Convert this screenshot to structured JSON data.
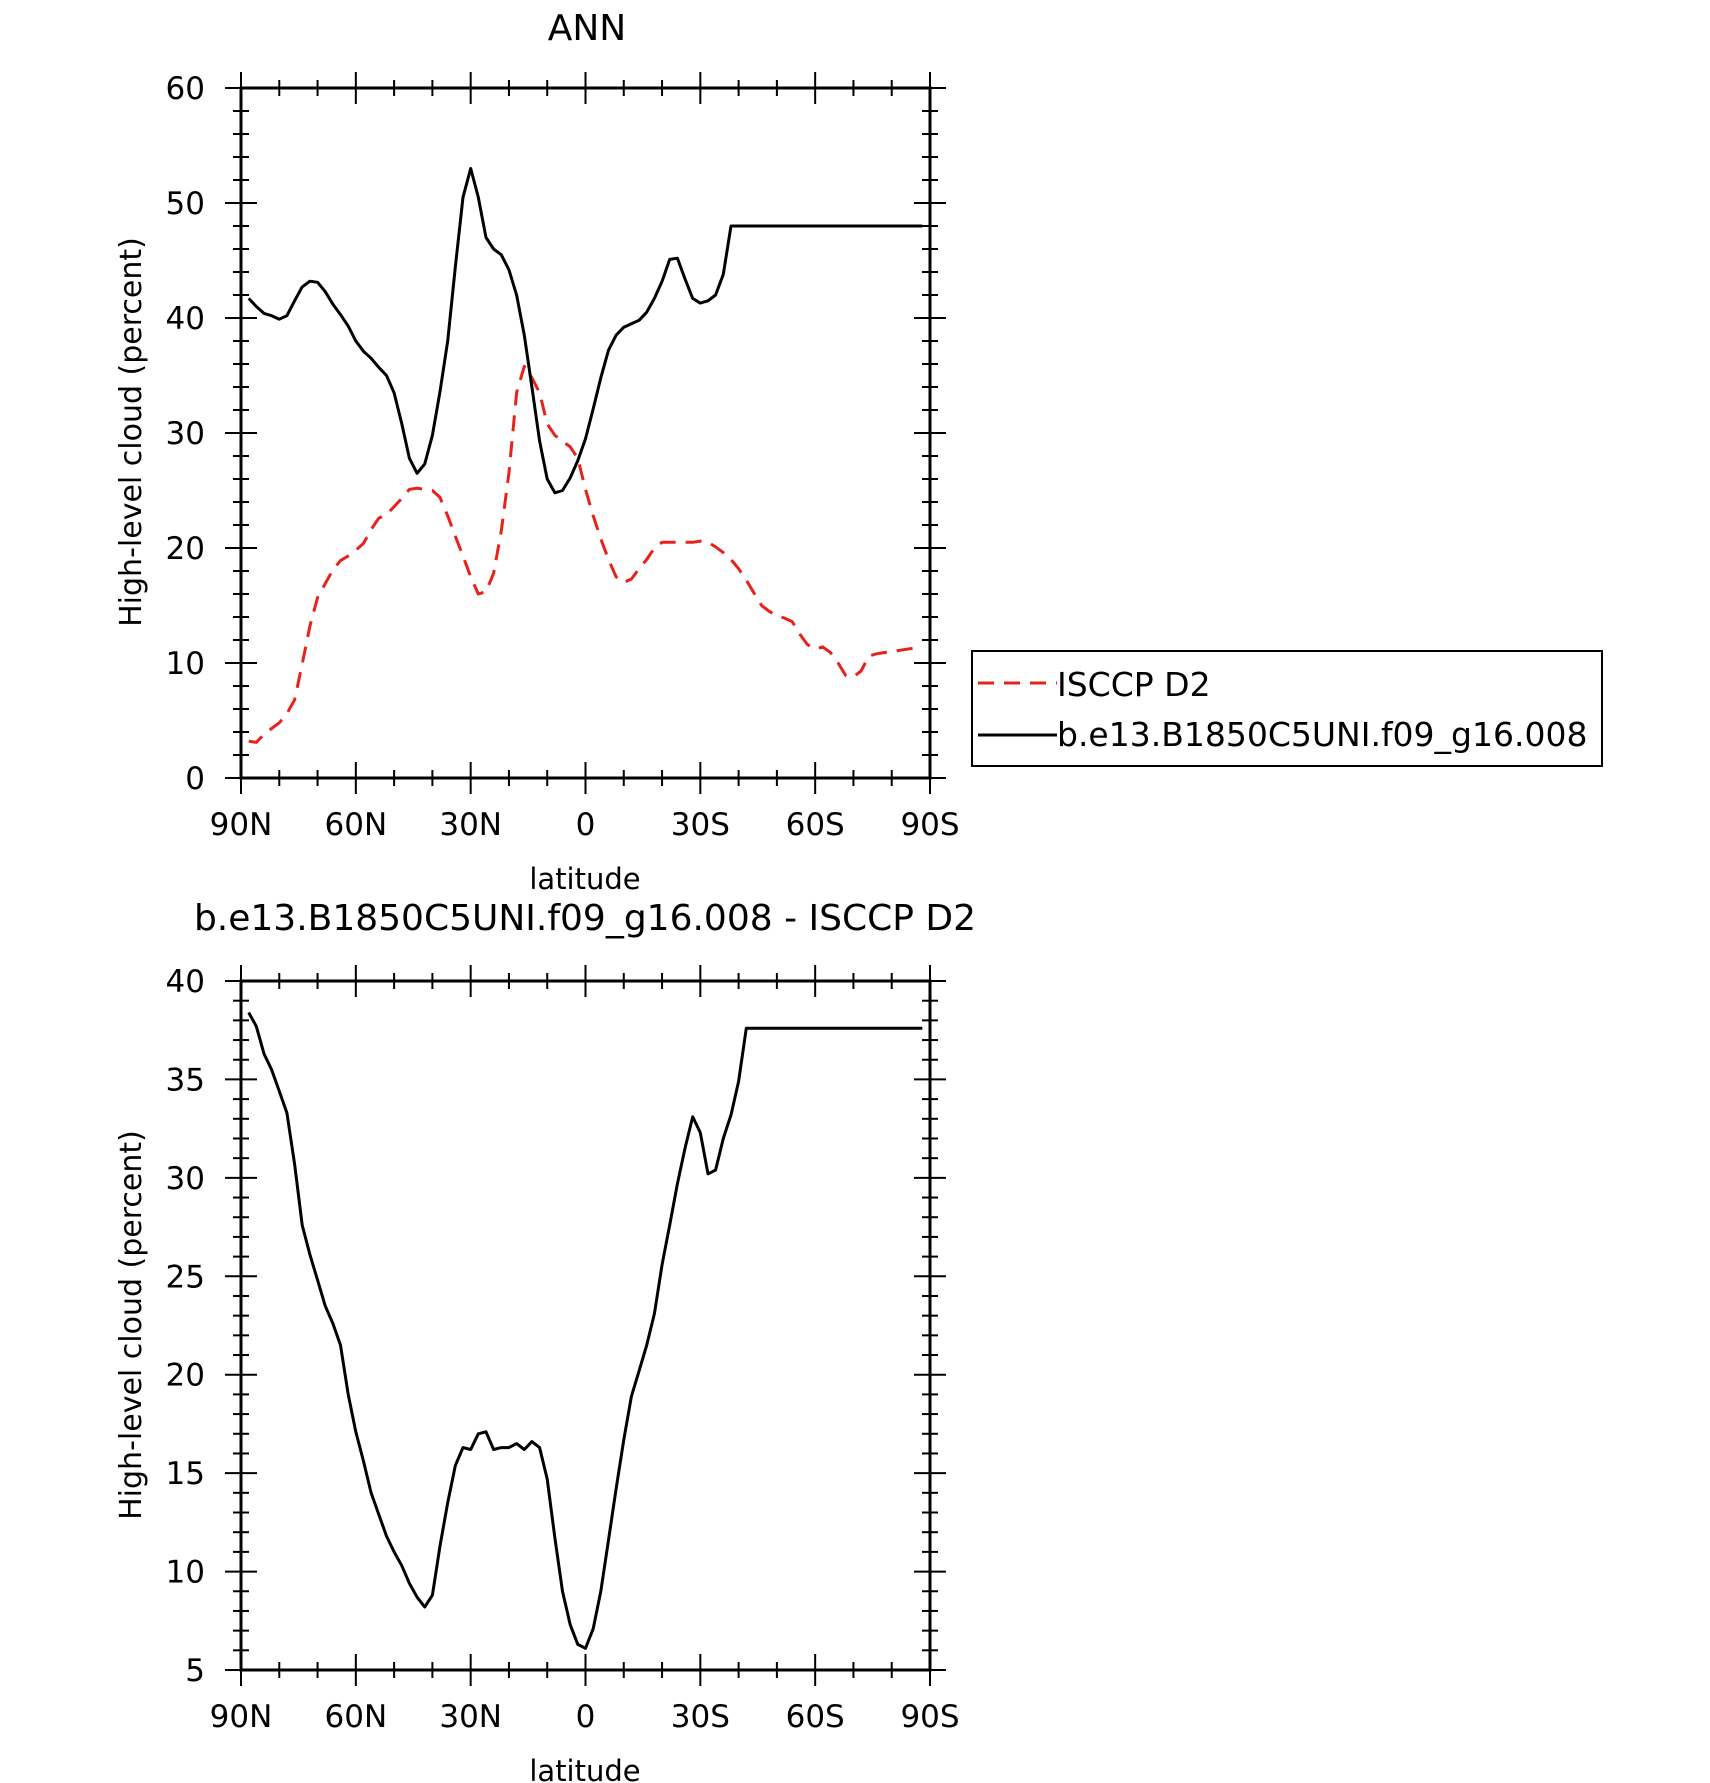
{
  "chart_data": [
    {
      "type": "line",
      "title": "ANN",
      "xlabel": "latitude",
      "ylabel": "High-level cloud (percent)",
      "xlim": [
        90,
        -90
      ],
      "ylim": [
        0,
        60
      ],
      "x_ticks": [
        90,
        60,
        30,
        0,
        -30,
        -60,
        -90
      ],
      "x_tick_labels": [
        "90N",
        "60N",
        "30N",
        "0",
        "30S",
        "60S",
        "90S"
      ],
      "y_ticks": [
        0,
        10,
        20,
        30,
        40,
        50,
        60
      ],
      "y_tick_labels": [
        "0",
        "10",
        "20",
        "30",
        "40",
        "50",
        "60"
      ],
      "grid": false,
      "legend": "right",
      "series": [
        {
          "name": "ISCCP D2",
          "color": "#e8221b",
          "dash": "dashed",
          "x": [
            88,
            86,
            84,
            82,
            80,
            78,
            76,
            74,
            72,
            70,
            68,
            66,
            64,
            62,
            60,
            58,
            56,
            54,
            52,
            50,
            48,
            46,
            44,
            42,
            40,
            38,
            36,
            34,
            32,
            30,
            28,
            26,
            24,
            22,
            20,
            18,
            16,
            14,
            12,
            10,
            8,
            6,
            4,
            2,
            0,
            -2,
            -4,
            -6,
            -8,
            -10,
            -12,
            -14,
            -16,
            -18,
            -20,
            -22,
            -24,
            -26,
            -28,
            -30,
            -32,
            -34,
            -36,
            -38,
            -40,
            -42,
            -44,
            -46,
            -48,
            -50,
            -52,
            -54,
            -56,
            -58,
            -60,
            -62,
            -64,
            -66,
            -68,
            -70,
            -72,
            -74,
            -76,
            -78,
            -80,
            -82,
            -84,
            -86,
            -88
          ],
          "values": [
            3.2,
            3.1,
            3.8,
            4.3,
            4.8,
            5.6,
            6.8,
            9.9,
            13.2,
            15.7,
            16.9,
            18.1,
            18.9,
            19.3,
            19.8,
            20.4,
            21.6,
            22.6,
            22.9,
            23.6,
            24.3,
            25.1,
            25.2,
            25.1,
            25.0,
            24.4,
            22.8,
            21.0,
            19.3,
            17.5,
            16.0,
            16.2,
            17.8,
            21.5,
            26.5,
            33.5,
            35.8,
            34.8,
            33.5,
            30.8,
            29.8,
            29.3,
            28.8,
            27.8,
            25.1,
            22.8,
            20.8,
            19.0,
            17.5,
            17.0,
            17.3,
            18.2,
            19.0,
            20.0,
            20.5,
            20.5,
            20.5,
            20.5,
            20.5,
            20.6,
            20.5,
            20.1,
            19.6,
            19.0,
            18.2,
            17.2,
            16.1,
            15.0,
            14.5,
            14.1,
            13.9,
            13.6,
            12.5,
            11.6,
            11.2,
            11.4,
            10.9,
            10.0,
            8.9,
            8.8,
            9.3,
            10.6,
            10.8,
            10.9,
            11.0,
            11.1,
            11.2,
            11.3,
            11.4
          ],
          "label": "ISCCP D2"
        },
        {
          "name": "b.e13.B1850C5UNI.f09_g16.008",
          "color": "#000000",
          "dash": "solid",
          "x": [
            88,
            86,
            84,
            82,
            80,
            78,
            76,
            74,
            72,
            70,
            68,
            66,
            64,
            62,
            60,
            58,
            56,
            54,
            52,
            50,
            48,
            46,
            44,
            42,
            40,
            38,
            36,
            34,
            32,
            30,
            28,
            26,
            24,
            22,
            20,
            18,
            16,
            14,
            12,
            10,
            8,
            6,
            4,
            2,
            0,
            -2,
            -4,
            -6,
            -8,
            -10,
            -12,
            -14,
            -16,
            -18,
            -20,
            -22,
            -24,
            -26,
            -28,
            -30,
            -32,
            -34,
            -36,
            -38,
            -40,
            -42,
            -44,
            -46,
            -48,
            -50,
            -52,
            -54,
            -56,
            -58,
            -60,
            -62,
            -64,
            -66,
            -68,
            -70,
            -72,
            -74,
            -76,
            -78,
            -80,
            -82,
            -84,
            -86,
            -88
          ],
          "values": [
            41.7,
            41.0,
            40.4,
            40.2,
            39.9,
            40.2,
            41.5,
            42.7,
            43.2,
            43.1,
            42.3,
            41.2,
            40.3,
            39.3,
            38.0,
            37.1,
            36.5,
            35.7,
            35.0,
            33.5,
            30.8,
            27.8,
            26.5,
            27.3,
            29.8,
            33.6,
            38.0,
            44.5,
            50.5,
            53.0,
            50.5,
            47.0,
            46.0,
            45.5,
            44.2,
            42.0,
            38.5,
            34.0,
            29.3,
            26.0,
            24.8,
            25.0,
            26.1,
            27.6,
            29.5,
            32.1,
            34.8,
            37.2,
            38.5,
            39.2,
            39.5,
            39.8,
            40.5,
            41.7,
            43.2,
            45.1,
            45.2,
            43.4,
            41.7,
            41.3,
            41.5,
            42.0,
            43.8,
            48.0,
            48.0,
            48.0,
            48.0,
            48.0,
            48.0,
            48.0,
            48.0,
            48.0,
            48.0,
            48.0,
            48.0,
            48.0,
            48.0,
            48.0,
            48.0,
            48.0,
            48.0,
            48.0,
            48.0,
            48.0,
            48.0,
            48.0,
            48.0,
            48.0,
            48.0
          ],
          "label": "b.e13.B1850C5UNI.f09_g16.008"
        }
      ]
    },
    {
      "type": "line",
      "title": "b.e13.B1850C5UNI.f09_g16.008 - ISCCP D2",
      "xlabel": "latitude",
      "ylabel": "High-level cloud (percent)",
      "xlim": [
        90,
        -90
      ],
      "ylim": [
        5,
        40
      ],
      "x_ticks": [
        90,
        60,
        30,
        0,
        -30,
        -60,
        -90
      ],
      "x_tick_labels": [
        "90N",
        "60N",
        "30N",
        "0",
        "30S",
        "60S",
        "90S"
      ],
      "y_ticks": [
        5,
        10,
        15,
        20,
        25,
        30,
        35,
        40
      ],
      "y_tick_labels": [
        "5",
        "10",
        "15",
        "20",
        "25",
        "30",
        "35",
        "40"
      ],
      "grid": false,
      "series": [
        {
          "color": "#000000",
          "dash": "solid",
          "x": [
            88,
            86,
            84,
            82,
            80,
            78,
            76,
            74,
            72,
            70,
            68,
            66,
            64,
            62,
            60,
            58,
            56,
            54,
            52,
            50,
            48,
            46,
            44,
            42,
            40,
            38,
            36,
            34,
            32,
            30,
            28,
            26,
            24,
            22,
            20,
            18,
            16,
            14,
            12,
            10,
            8,
            6,
            4,
            2,
            0,
            -2,
            -4,
            -6,
            -8,
            -10,
            -12,
            -14,
            -16,
            -18,
            -20,
            -22,
            -24,
            -26,
            -28,
            -30,
            -32,
            -34,
            -36,
            -38,
            -40,
            -42,
            -44,
            -46,
            -48,
            -50,
            -52,
            -54,
            -56,
            -58,
            -60,
            -62,
            -64,
            -66,
            -68,
            -70,
            -72,
            -74,
            -76,
            -78,
            -80,
            -82,
            -84,
            -86,
            -88
          ],
          "values": [
            38.4,
            37.7,
            36.3,
            35.5,
            34.4,
            33.3,
            30.7,
            27.6,
            26.1,
            24.8,
            23.5,
            22.6,
            21.5,
            19.0,
            17.1,
            15.6,
            14.0,
            12.9,
            11.8,
            11.0,
            10.3,
            9.4,
            8.7,
            8.2,
            8.8,
            11.3,
            13.5,
            15.4,
            16.3,
            16.2,
            17.0,
            17.1,
            16.2,
            16.3,
            16.3,
            16.5,
            16.2,
            16.6,
            16.3,
            14.7,
            11.7,
            9.0,
            7.3,
            6.3,
            6.1,
            7.1,
            9.0,
            11.6,
            14.2,
            16.7,
            18.9,
            20.2,
            21.5,
            23.1,
            25.6,
            27.6,
            29.7,
            31.5,
            33.1,
            32.3,
            30.2,
            30.4,
            32.0,
            33.2,
            34.9,
            37.6,
            37.6,
            37.6,
            37.6,
            37.6,
            37.6,
            37.6,
            37.6,
            37.6,
            37.6,
            37.6,
            37.6,
            37.6,
            37.6,
            37.6,
            37.6,
            37.6,
            37.6,
            37.6,
            37.6,
            37.6,
            37.6,
            37.6,
            37.6
          ]
        }
      ]
    }
  ]
}
